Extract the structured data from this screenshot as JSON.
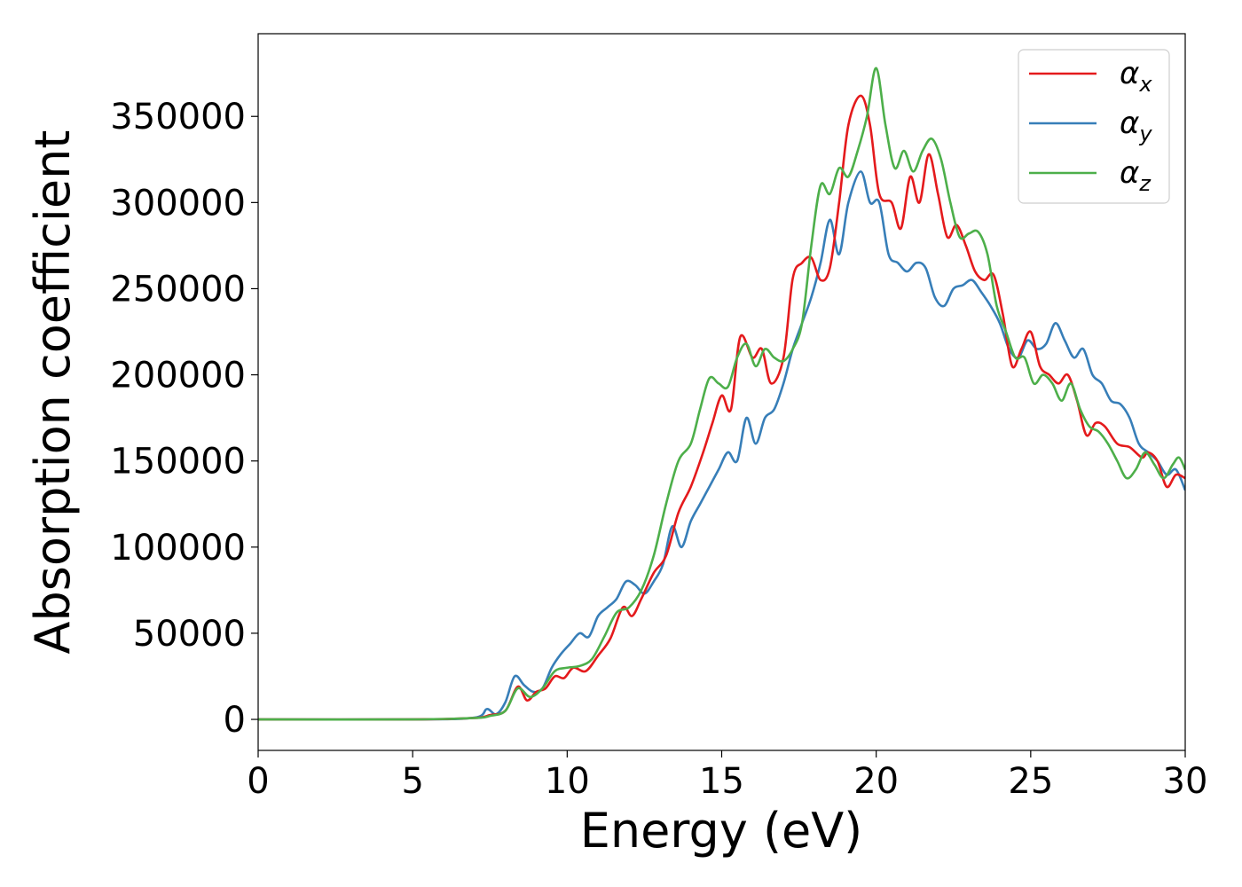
{
  "chart_data": {
    "type": "line",
    "title": "",
    "xlabel": "Energy (eV)",
    "ylabel": "Absorption coefficient",
    "xlim": [
      0,
      30
    ],
    "ylim": [
      -18000,
      398000
    ],
    "xticks": [
      0,
      5,
      10,
      15,
      20,
      25,
      30
    ],
    "yticks": [
      0,
      50000,
      100000,
      150000,
      200000,
      250000,
      300000,
      350000
    ],
    "grid": false,
    "legend_position": "top-right",
    "series": [
      {
        "name": "α",
        "subscript": "x",
        "color": "#e41a1c",
        "x": [
          0,
          5,
          7,
          7.5,
          8,
          8.4,
          8.7,
          9,
          9.3,
          9.6,
          9.9,
          10.2,
          10.6,
          11,
          11.4,
          11.8,
          12.1,
          12.4,
          12.8,
          13.2,
          13.6,
          14,
          14.4,
          14.7,
          15,
          15.3,
          15.6,
          16,
          16.3,
          16.6,
          17,
          17.3,
          17.6,
          17.9,
          18.2,
          18.5,
          18.8,
          19.1,
          19.5,
          19.8,
          20.1,
          20.5,
          20.8,
          21.1,
          21.4,
          21.7,
          22,
          22.3,
          22.6,
          22.9,
          23.2,
          23.5,
          23.8,
          24.1,
          24.4,
          24.7,
          25,
          25.3,
          25.6,
          25.9,
          26.2,
          26.5,
          26.8,
          27.1,
          27.4,
          27.8,
          28.2,
          28.6,
          28.8,
          29.1,
          29.4,
          29.7,
          30
        ],
        "y": [
          0,
          0,
          800,
          2500,
          5000,
          19000,
          11000,
          16000,
          18000,
          25000,
          24000,
          30000,
          28000,
          37000,
          47000,
          65000,
          60000,
          70000,
          85000,
          95000,
          120000,
          135000,
          155000,
          172000,
          188000,
          180000,
          222000,
          210000,
          215000,
          195000,
          210000,
          256000,
          265000,
          268000,
          255000,
          262000,
          300000,
          345000,
          362000,
          345000,
          305000,
          300000,
          285000,
          315000,
          300000,
          328000,
          305000,
          280000,
          287000,
          275000,
          260000,
          255000,
          258000,
          235000,
          205000,
          215000,
          225000,
          205000,
          200000,
          195000,
          200000,
          185000,
          165000,
          172000,
          170000,
          160000,
          158000,
          152000,
          155000,
          150000,
          135000,
          142000,
          140000
        ]
      },
      {
        "name": "α",
        "subscript": "y",
        "color": "#377eb8",
        "x": [
          0,
          5,
          7,
          7.4,
          7.7,
          8,
          8.3,
          8.6,
          8.9,
          9.2,
          9.5,
          9.8,
          10.1,
          10.4,
          10.7,
          11,
          11.3,
          11.6,
          11.9,
          12.2,
          12.5,
          12.8,
          13.1,
          13.4,
          13.7,
          14,
          14.3,
          14.6,
          14.9,
          15.2,
          15.5,
          15.8,
          16.1,
          16.4,
          16.7,
          17,
          17.3,
          17.6,
          17.9,
          18.2,
          18.5,
          18.8,
          19.1,
          19.5,
          19.8,
          20.1,
          20.4,
          20.7,
          21,
          21.3,
          21.6,
          21.9,
          22.2,
          22.5,
          22.8,
          23.1,
          23.4,
          23.7,
          24,
          24.3,
          24.6,
          24.9,
          25.2,
          25.5,
          25.8,
          26.1,
          26.4,
          26.7,
          27,
          27.3,
          27.6,
          27.9,
          28.2,
          28.5,
          28.8,
          29.1,
          29.4,
          29.7,
          30
        ],
        "y": [
          0,
          0,
          1000,
          6000,
          3000,
          10000,
          25000,
          20000,
          16000,
          18000,
          30000,
          38000,
          44000,
          50000,
          48000,
          60000,
          65000,
          70000,
          80000,
          78000,
          73000,
          80000,
          90000,
          112000,
          100000,
          115000,
          125000,
          135000,
          145000,
          155000,
          150000,
          175000,
          160000,
          175000,
          180000,
          195000,
          215000,
          230000,
          245000,
          265000,
          290000,
          270000,
          300000,
          318000,
          300000,
          300000,
          270000,
          265000,
          260000,
          265000,
          262000,
          245000,
          240000,
          250000,
          252000,
          255000,
          248000,
          240000,
          230000,
          215000,
          210000,
          220000,
          215000,
          218000,
          230000,
          220000,
          210000,
          215000,
          200000,
          195000,
          185000,
          183000,
          175000,
          160000,
          155000,
          150000,
          142000,
          145000,
          133000
        ]
      },
      {
        "name": "α",
        "subscript": "z",
        "color": "#4daf4a",
        "x": [
          0,
          5,
          7,
          7.5,
          8,
          8.4,
          8.8,
          9.2,
          9.6,
          10,
          10.4,
          10.8,
          11.2,
          11.6,
          12,
          12.4,
          12.8,
          13.2,
          13.6,
          14,
          14.3,
          14.6,
          14.9,
          15.2,
          15.5,
          15.8,
          16.1,
          16.4,
          16.7,
          17,
          17.3,
          17.6,
          17.9,
          18.2,
          18.5,
          18.8,
          19.1,
          19.4,
          19.7,
          20,
          20.3,
          20.6,
          20.9,
          21.2,
          21.5,
          21.8,
          22.1,
          22.4,
          22.7,
          23,
          23.3,
          23.6,
          23.9,
          24.2,
          24.5,
          24.8,
          25.1,
          25.4,
          25.7,
          26,
          26.3,
          26.6,
          26.9,
          27.2,
          27.5,
          27.8,
          28.1,
          28.4,
          28.7,
          29,
          29.3,
          29.6,
          29.8,
          30
        ],
        "y": [
          0,
          0,
          800,
          2000,
          5000,
          18000,
          13000,
          18000,
          28000,
          30000,
          31000,
          35000,
          48000,
          62000,
          65000,
          75000,
          95000,
          125000,
          150000,
          160000,
          180000,
          198000,
          195000,
          193000,
          210000,
          218000,
          205000,
          215000,
          210000,
          208000,
          215000,
          230000,
          275000,
          310000,
          305000,
          320000,
          315000,
          330000,
          350000,
          378000,
          345000,
          320000,
          330000,
          318000,
          330000,
          337000,
          325000,
          300000,
          280000,
          282000,
          283000,
          270000,
          240000,
          225000,
          210000,
          210000,
          195000,
          200000,
          195000,
          185000,
          195000,
          180000,
          170000,
          167000,
          160000,
          150000,
          140000,
          145000,
          155000,
          148000,
          140000,
          148000,
          152000,
          145000
        ]
      }
    ]
  }
}
